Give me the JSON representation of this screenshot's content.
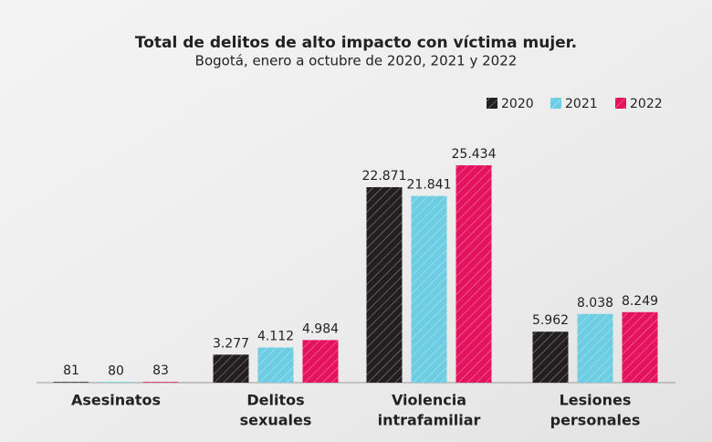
{
  "chart_data": {
    "type": "bar",
    "title": "Total de delitos de alto impacto con víctima mujer.",
    "subtitle": "Bogotá, enero a octubre de 2020, 2021 y 2022",
    "categories": [
      [
        "Asesinatos"
      ],
      [
        "Delitos",
        "sexuales"
      ],
      [
        "Violencia",
        "intrafamiliar"
      ],
      [
        "Lesiones",
        "personales"
      ]
    ],
    "series": [
      {
        "name": "2020",
        "color": "#231f20",
        "values": [
          81,
          3277,
          22871,
          5962
        ],
        "value_labels": [
          "81",
          "3.277",
          "22.871",
          "5.962"
        ]
      },
      {
        "name": "2021",
        "color": "#6dcde2",
        "values": [
          80,
          4112,
          21841,
          8038
        ],
        "value_labels": [
          "80",
          "4.112",
          "21.841",
          "8.038"
        ]
      },
      {
        "name": "2022",
        "color": "#e5125e",
        "values": [
          83,
          4984,
          25434,
          8249
        ],
        "value_labels": [
          "83",
          "4.984",
          "25.434",
          "8.249"
        ]
      }
    ],
    "legend": "top-right"
  }
}
